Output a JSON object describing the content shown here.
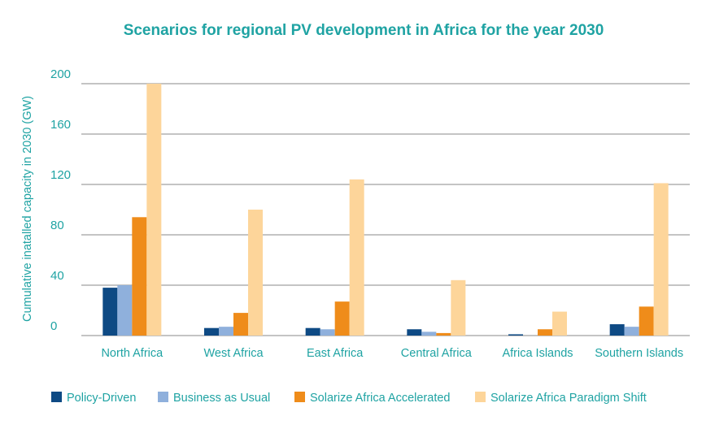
{
  "chart_data": {
    "type": "bar",
    "title": "Scenarios for regional PV development in Africa for the year 2030",
    "ylabel": "Cumulative inatalled capacity in 2030 (GW)",
    "xlabel": "",
    "ylim": [
      0,
      200
    ],
    "yticks": [
      0,
      40,
      80,
      120,
      160,
      200
    ],
    "grid": true,
    "legend_position": "bottom",
    "categories": [
      "North Africa",
      "West Africa",
      "East Africa",
      "Central Africa",
      "Africa Islands",
      "Southern Islands"
    ],
    "series": [
      {
        "name": "Policy-Driven",
        "color": "#0e4a84",
        "values": [
          38,
          6,
          6,
          5,
          1,
          9
        ]
      },
      {
        "name": "Business as Usual",
        "color": "#8fb0dc",
        "values": [
          40,
          7,
          5,
          3,
          0,
          7
        ]
      },
      {
        "name": "Solarize Africa Accelerated",
        "color": "#ef8c1a",
        "values": [
          94,
          18,
          27,
          2,
          5,
          23
        ]
      },
      {
        "name": "Solarize Africa Paradigm Shift",
        "color": "#fdd59a",
        "values": [
          200,
          100,
          124,
          44,
          19,
          121
        ]
      }
    ]
  }
}
